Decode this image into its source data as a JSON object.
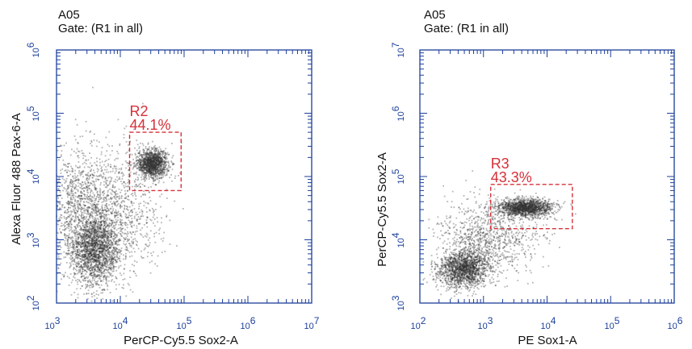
{
  "chart_data": [
    {
      "type": "scatter",
      "sample": "A05",
      "gate": "Gate: (R1 in all)",
      "xlabel": "PerCP-Cy5.5 Sox2-A",
      "ylabel": "Alexa Fluor 488 Pax-6-A",
      "xscale": "log",
      "yscale": "log",
      "xlim": [
        1000,
        10000000
      ],
      "ylim": [
        100,
        1000000
      ],
      "x_ticks": [
        {
          "base": "10",
          "exp": "3"
        },
        {
          "base": "10",
          "exp": "4"
        },
        {
          "base": "10",
          "exp": "5"
        },
        {
          "base": "10",
          "exp": "6"
        },
        {
          "base": "10",
          "exp": "7"
        }
      ],
      "y_ticks": [
        {
          "base": "10",
          "exp": "2"
        },
        {
          "base": "10",
          "exp": "3"
        },
        {
          "base": "10",
          "exp": "4"
        },
        {
          "base": "10",
          "exp": "5"
        },
        {
          "base": "10",
          "exp": "6"
        }
      ],
      "gate_region": {
        "name": "R2",
        "percent": "44.1%",
        "x_range": [
          14000,
          90000
        ],
        "y_range": [
          6000,
          50000
        ]
      },
      "populations": [
        {
          "center": [
            32000,
            16000
          ],
          "count": 1300,
          "spread_decades": [
            0.12,
            0.11
          ]
        },
        {
          "center": [
            4000,
            700
          ],
          "count": 1900,
          "spread_decades": [
            0.2,
            0.28
          ]
        },
        {
          "center": [
            2200,
            3500
          ],
          "count": 900,
          "spread_decades": [
            0.25,
            0.45
          ]
        },
        {
          "center": [
            9000,
            3000
          ],
          "count": 900,
          "spread_decades": [
            0.35,
            0.5
          ]
        }
      ],
      "colors": {
        "frame": "#1c3f9c",
        "gate": "#d6303a",
        "points": "#303030"
      }
    },
    {
      "type": "scatter",
      "sample": "A05",
      "gate": "Gate: (R1 in all)",
      "xlabel": "PE Sox1-A",
      "ylabel": "PerCP-Cy5.5 Sox2-A",
      "xscale": "log",
      "yscale": "log",
      "xlim": [
        100,
        1000000
      ],
      "ylim": [
        1000,
        10000000
      ],
      "x_ticks": [
        {
          "base": "10",
          "exp": "2"
        },
        {
          "base": "10",
          "exp": "3"
        },
        {
          "base": "10",
          "exp": "4"
        },
        {
          "base": "10",
          "exp": "5"
        },
        {
          "base": "10",
          "exp": "6"
        }
      ],
      "y_ticks": [
        {
          "base": "10",
          "exp": "3"
        },
        {
          "base": "10",
          "exp": "4"
        },
        {
          "base": "10",
          "exp": "5"
        },
        {
          "base": "10",
          "exp": "6"
        },
        {
          "base": "10",
          "exp": "7"
        }
      ],
      "gate_region": {
        "name": "R3",
        "percent": "43.3%",
        "x_range": [
          1300,
          25000
        ],
        "y_range": [
          15000,
          75000
        ]
      },
      "populations": [
        {
          "center": [
            4500,
            32000
          ],
          "count": 1500,
          "spread_decades": [
            0.22,
            0.07
          ]
        },
        {
          "center": [
            500,
            3500
          ],
          "count": 1700,
          "spread_decades": [
            0.2,
            0.15
          ]
        },
        {
          "center": [
            1200,
            12000
          ],
          "count": 900,
          "spread_decades": [
            0.4,
            0.28
          ]
        }
      ],
      "colors": {
        "frame": "#1c3f9c",
        "gate": "#d6303a",
        "points": "#303030"
      }
    }
  ]
}
